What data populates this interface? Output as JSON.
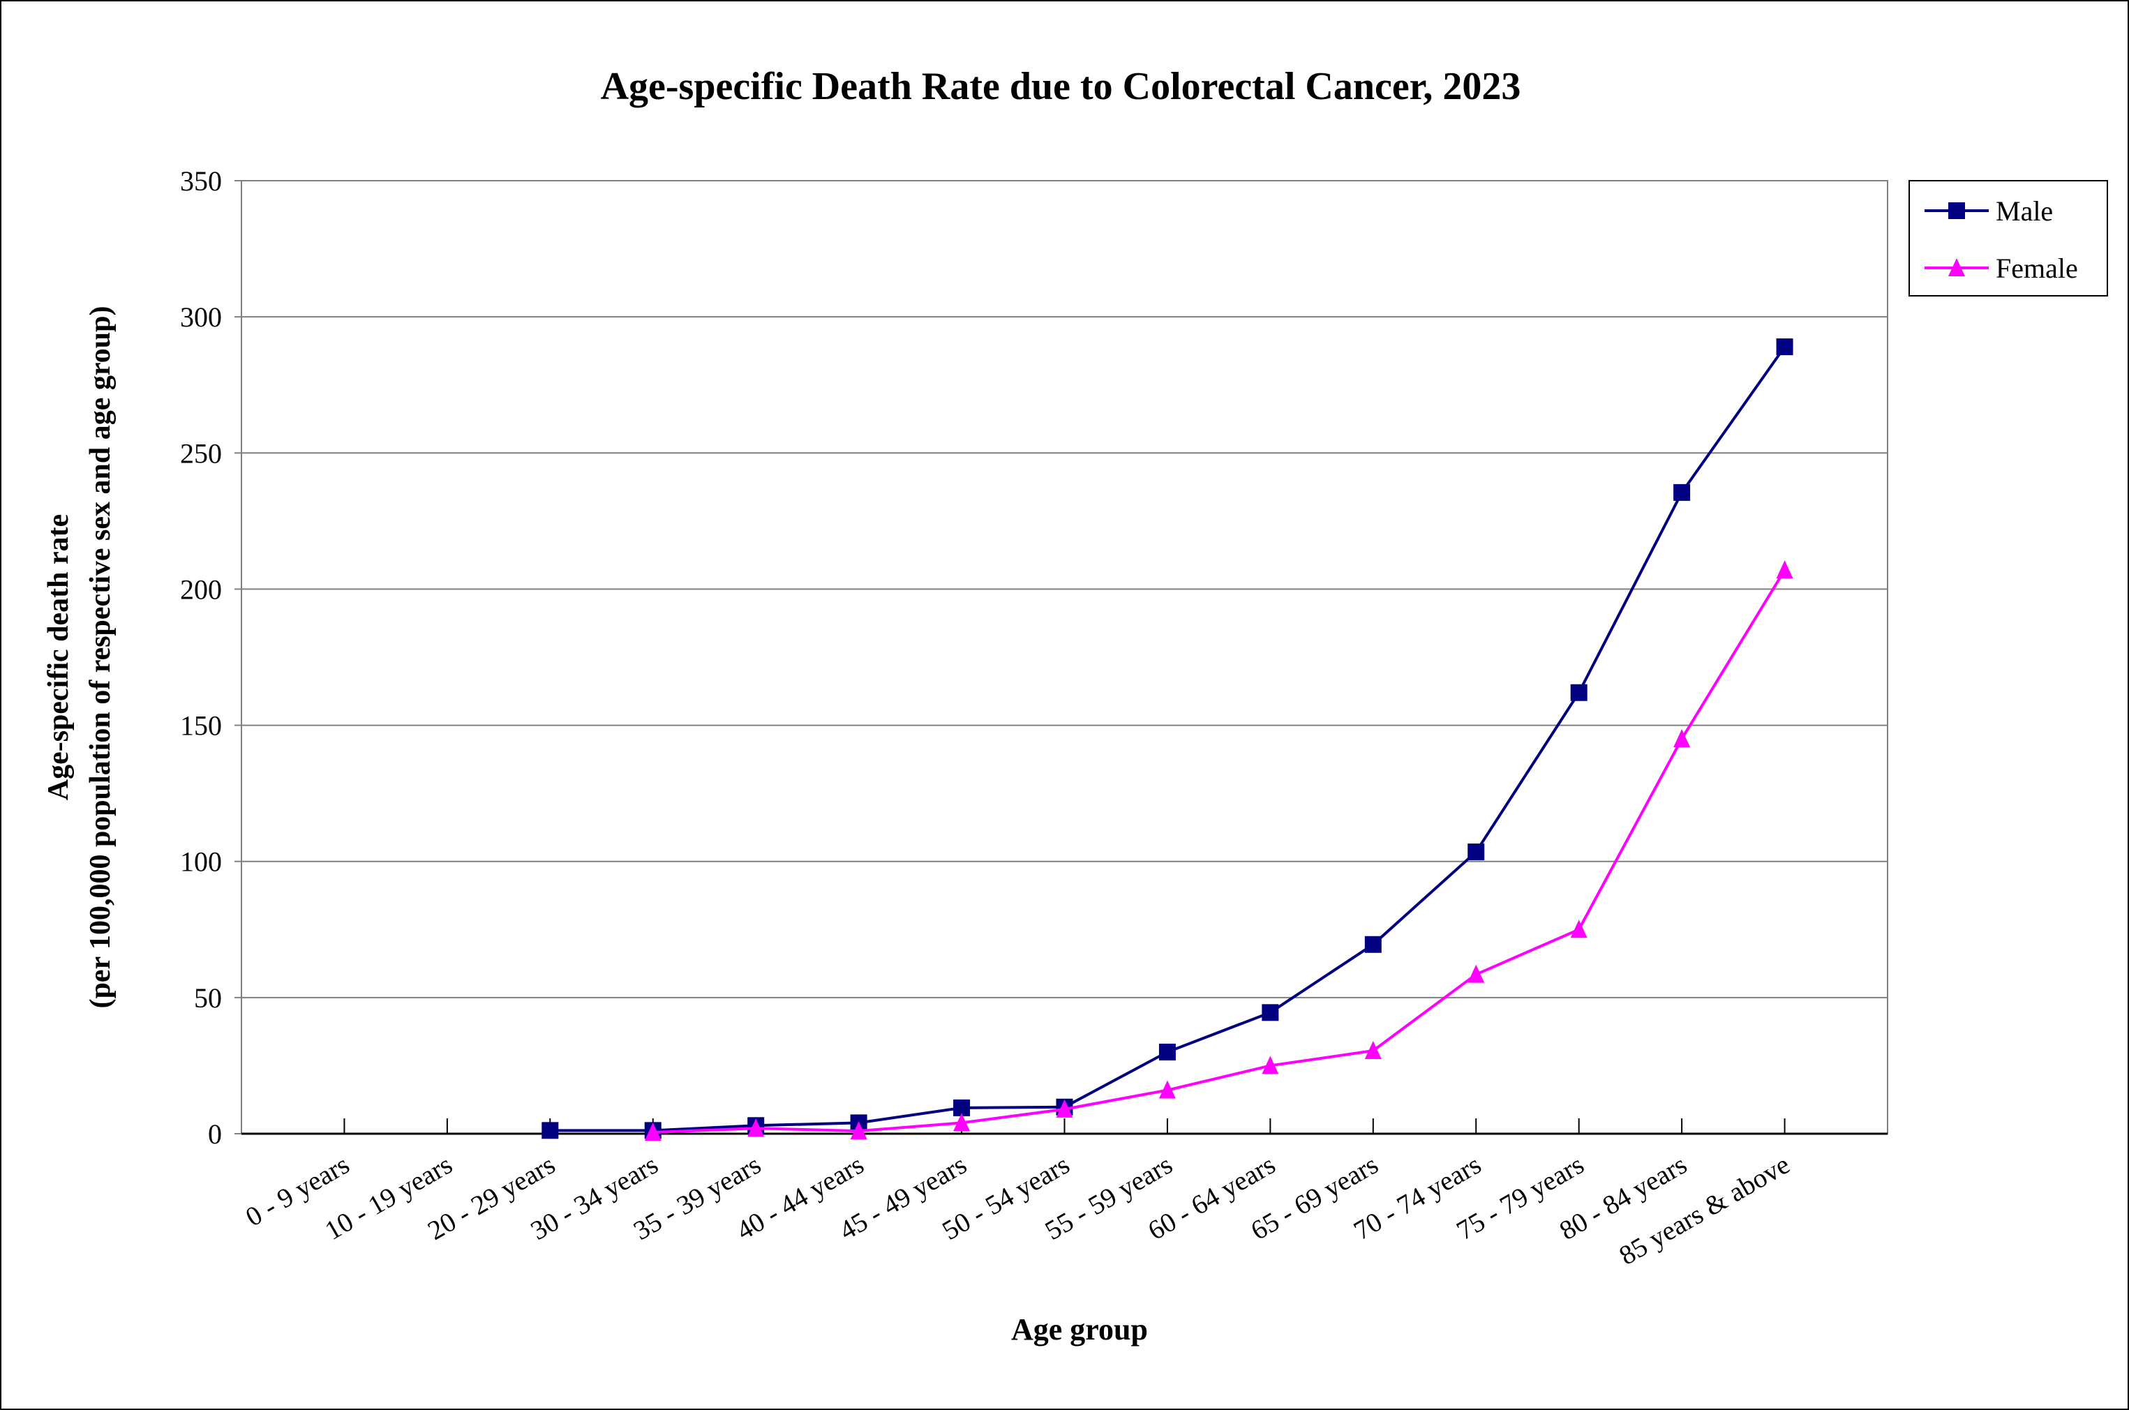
{
  "chart_data": {
    "type": "line",
    "title": "Age-specific Death Rate due to Colorectal Cancer, 2023",
    "xlabel": "Age group",
    "ylabel": [
      "Age-specific death rate",
      "(per 100,000 population of respective sex and age group)"
    ],
    "ylim": [
      0,
      350
    ],
    "yticks": [
      0,
      50,
      100,
      150,
      200,
      250,
      300,
      350
    ],
    "grid": true,
    "legend": "right",
    "categories": [
      "0 - 9 years",
      "10 - 19 years",
      "20 - 29 years",
      "30 - 34 years",
      "35 - 39 years",
      "40 - 44 years",
      "45 - 49 years",
      "50 - 54 years",
      "55 - 59 years",
      "60 - 64 years",
      "65 - 69 years",
      "70 - 74 years",
      "75 - 79 years",
      "80 - 84 years",
      "85 years & above"
    ],
    "series": [
      {
        "name": "Male",
        "color": "#000080",
        "marker": "square",
        "values": [
          null,
          null,
          1.2,
          1.2,
          3,
          4,
          9.5,
          9.8,
          30,
          44.5,
          69.5,
          103.5,
          162,
          235.5,
          289
        ]
      },
      {
        "name": "Female",
        "color": "#FF00FF",
        "marker": "triangle",
        "values": [
          null,
          null,
          null,
          0.5,
          2,
          1,
          4,
          9,
          16,
          25,
          30.5,
          58.5,
          75,
          145,
          207
        ]
      }
    ]
  }
}
